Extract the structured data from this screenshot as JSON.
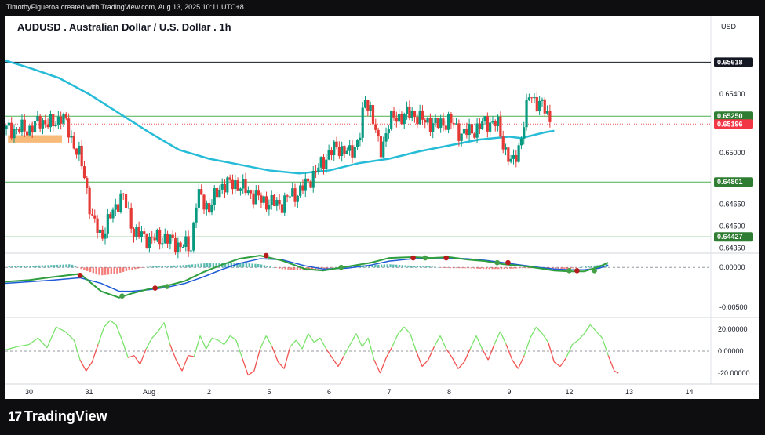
{
  "header": {
    "attribution": "TimothyFigueroa created with TradingView.com, Aug 13, 2025 10:11 UTC+8",
    "title": "AUDUSD . Australian Dollar / U.S. Dollar . 1h",
    "currency": "USD"
  },
  "brand": {
    "name": "TradingView",
    "logo": "tradingview-logo"
  },
  "colors": {
    "up": "#26a69a",
    "up_candle": "#089981",
    "down": "#e53935",
    "ma": "#26bcd7",
    "level_line": "#4caf50",
    "macd_fast": "#4caf50",
    "macd_slow": "#1e5bd6",
    "stoch": "#7ae36b"
  },
  "chart_data": [
    {
      "type": "candlestick",
      "symbol": "AUDUSD",
      "timeframe": "1h",
      "ylim": [
        0.643,
        0.6578
      ],
      "y_ticks": [
        "0.65400",
        "0.65000",
        "0.64650",
        "0.64500",
        "0.64350"
      ],
      "x_tick_labels": [
        "30",
        "31",
        "Aug",
        "2",
        "5",
        "6",
        "7",
        "8",
        "9",
        "12",
        "13",
        "14"
      ],
      "x_tick_days": [
        0.0,
        1.0,
        2.0,
        3.0,
        4.0,
        5.0,
        6.0,
        7.0,
        8.0,
        9.0,
        10.0,
        11.0
      ],
      "close_series": [
        [
          0.0,
          0.6516
        ],
        [
          0.2,
          0.6522
        ],
        [
          0.4,
          0.6519
        ],
        [
          0.55,
          0.6526
        ],
        [
          0.7,
          0.651
        ],
        [
          0.85,
          0.6497
        ],
        [
          0.95,
          0.6478
        ],
        [
          1.05,
          0.6455
        ],
        [
          1.2,
          0.6443
        ],
        [
          1.35,
          0.6456
        ],
        [
          1.55,
          0.6472
        ],
        [
          1.75,
          0.6446
        ],
        [
          2.0,
          0.6441
        ],
        [
          2.25,
          0.6442
        ],
        [
          2.5,
          0.6437
        ],
        [
          2.7,
          0.6436
        ],
        [
          2.8,
          0.6472
        ],
        [
          3.0,
          0.6462
        ],
        [
          3.2,
          0.6478
        ],
        [
          3.45,
          0.6479
        ],
        [
          3.6,
          0.6475
        ],
        [
          3.85,
          0.6468
        ],
        [
          4.0,
          0.6466
        ],
        [
          4.2,
          0.6465
        ],
        [
          4.35,
          0.6471
        ],
        [
          4.5,
          0.6473
        ],
        [
          4.7,
          0.6483
        ],
        [
          4.85,
          0.6491
        ],
        [
          5.0,
          0.65
        ],
        [
          5.15,
          0.6504
        ],
        [
          5.35,
          0.6499
        ],
        [
          5.5,
          0.651
        ],
        [
          5.6,
          0.6535
        ],
        [
          5.7,
          0.653
        ],
        [
          5.85,
          0.6499
        ],
        [
          6.0,
          0.6522
        ],
        [
          6.2,
          0.6525
        ],
        [
          6.4,
          0.6527
        ],
        [
          6.55,
          0.6522
        ],
        [
          6.8,
          0.6519
        ],
        [
          7.0,
          0.6522
        ],
        [
          7.2,
          0.6513
        ],
        [
          7.45,
          0.6516
        ],
        [
          7.6,
          0.6521
        ],
        [
          7.8,
          0.652
        ],
        [
          7.95,
          0.65
        ],
        [
          8.05,
          0.6491
        ],
        [
          8.2,
          0.651
        ],
        [
          8.35,
          0.6543
        ],
        [
          8.45,
          0.6533
        ],
        [
          8.6,
          0.6531
        ],
        [
          8.7,
          0.6521
        ]
      ],
      "candle_count": 210,
      "moving_average": [
        [
          -0.4,
          0.6563
        ],
        [
          0.0,
          0.6558
        ],
        [
          0.5,
          0.6551
        ],
        [
          1.0,
          0.654
        ],
        [
          1.5,
          0.6527
        ],
        [
          2.0,
          0.6514
        ],
        [
          2.5,
          0.6502
        ],
        [
          3.0,
          0.6496
        ],
        [
          3.5,
          0.6492
        ],
        [
          4.0,
          0.6488
        ],
        [
          4.5,
          0.6486
        ],
        [
          5.0,
          0.6488
        ],
        [
          5.5,
          0.6493
        ],
        [
          6.0,
          0.6496
        ],
        [
          6.5,
          0.6501
        ],
        [
          7.0,
          0.6505
        ],
        [
          7.5,
          0.6509
        ],
        [
          8.0,
          0.6511
        ],
        [
          8.2,
          0.651
        ],
        [
          8.6,
          0.6514
        ],
        [
          8.75,
          0.6515
        ]
      ],
      "horizontal_levels": [
        {
          "value": 0.65618,
          "label": "0.65618",
          "style": "black"
        },
        {
          "value": 0.6525,
          "label": "0.65250",
          "style": "green"
        },
        {
          "value": 0.65196,
          "label": "0.65196",
          "style": "red-dotted"
        },
        {
          "value": 0.64801,
          "label": "0.64801",
          "style": "green"
        },
        {
          "value": 0.64427,
          "label": "0.64427",
          "style": "green"
        }
      ],
      "highlight_zone": [
        -0.35,
        0.55,
        0.6507,
        0.6512
      ]
    },
    {
      "type": "macd",
      "ylim": [
        -0.006,
        0.0017
      ],
      "y_ticks": [
        "0.00000",
        "-0.00500"
      ],
      "fast_line": [
        [
          -0.4,
          -0.0018
        ],
        [
          0.0,
          -0.0016
        ],
        [
          0.4,
          -0.0012
        ],
        [
          0.85,
          -0.0008
        ],
        [
          1.2,
          -0.003
        ],
        [
          1.5,
          -0.0038
        ],
        [
          1.7,
          -0.0033
        ],
        [
          2.0,
          -0.0027
        ],
        [
          2.3,
          -0.0023
        ],
        [
          2.6,
          -0.0017
        ],
        [
          2.9,
          -0.0006
        ],
        [
          3.2,
          0.0003
        ],
        [
          3.5,
          0.0011
        ],
        [
          3.85,
          0.0015
        ],
        [
          4.2,
          0.0009
        ],
        [
          4.6,
          -0.0002
        ],
        [
          4.9,
          -0.0004
        ],
        [
          5.3,
          0.0001
        ],
        [
          5.7,
          0.0006
        ],
        [
          6.0,
          0.0012
        ],
        [
          6.4,
          0.0013
        ],
        [
          6.7,
          0.0012
        ],
        [
          7.0,
          0.0013
        ],
        [
          7.3,
          0.001
        ],
        [
          7.6,
          0.0008
        ],
        [
          7.9,
          0.0004
        ],
        [
          8.2,
          0.0002
        ],
        [
          8.5,
          -0.0001
        ],
        [
          8.75,
          -0.0004
        ],
        [
          9.0,
          -0.0005
        ],
        [
          9.25,
          -0.0005
        ],
        [
          9.5,
          0.0001
        ],
        [
          9.65,
          0.0006
        ]
      ],
      "slow_line": [
        [
          -0.4,
          -0.002
        ],
        [
          0.0,
          -0.0018
        ],
        [
          0.4,
          -0.0016
        ],
        [
          0.85,
          -0.0013
        ],
        [
          1.2,
          -0.002
        ],
        [
          1.5,
          -0.003
        ],
        [
          1.7,
          -0.003
        ],
        [
          2.0,
          -0.0028
        ],
        [
          2.3,
          -0.0025
        ],
        [
          2.6,
          -0.002
        ],
        [
          2.9,
          -0.0012
        ],
        [
          3.2,
          -0.0003
        ],
        [
          3.5,
          0.0005
        ],
        [
          3.85,
          0.0011
        ],
        [
          4.2,
          0.001
        ],
        [
          4.6,
          0.0002
        ],
        [
          4.9,
          -0.0002
        ],
        [
          5.3,
          -0.0001
        ],
        [
          5.7,
          0.0003
        ],
        [
          6.0,
          0.0008
        ],
        [
          6.4,
          0.0011
        ],
        [
          6.7,
          0.0012
        ],
        [
          7.0,
          0.0012
        ],
        [
          7.3,
          0.0011
        ],
        [
          7.6,
          0.0009
        ],
        [
          7.9,
          0.0006
        ],
        [
          8.2,
          0.0003
        ],
        [
          8.5,
          0.0
        ],
        [
          8.75,
          -0.0002
        ],
        [
          9.0,
          -0.0003
        ],
        [
          9.25,
          -0.0003
        ],
        [
          9.5,
          -0.0001
        ],
        [
          9.65,
          0.0003
        ]
      ],
      "histogram": [
        [
          -0.4,
          0.0001
        ],
        [
          0.0,
          0.0002
        ],
        [
          0.4,
          0.0003
        ],
        [
          0.7,
          0.0004
        ],
        [
          0.9,
          -0.0003
        ],
        [
          1.2,
          -0.001
        ],
        [
          1.45,
          -0.0008
        ],
        [
          1.7,
          -0.0003
        ],
        [
          2.0,
          0.0001
        ],
        [
          2.3,
          0.0002
        ],
        [
          2.6,
          0.0003
        ],
        [
          2.9,
          0.0005
        ],
        [
          3.2,
          0.0006
        ],
        [
          3.5,
          0.0006
        ],
        [
          3.85,
          0.0004
        ],
        [
          4.2,
          -0.0002
        ],
        [
          4.6,
          -0.0004
        ],
        [
          4.9,
          -0.0002
        ],
        [
          5.3,
          0.0002
        ],
        [
          5.7,
          0.0003
        ],
        [
          6.0,
          0.0004
        ],
        [
          6.4,
          0.0002
        ],
        [
          6.7,
          0.0001
        ],
        [
          7.0,
          -0.0001
        ],
        [
          7.3,
          -0.0001
        ],
        [
          7.6,
          -0.0002
        ],
        [
          7.9,
          -0.0002
        ],
        [
          8.2,
          -0.0001
        ],
        [
          8.5,
          -0.0001
        ],
        [
          8.75,
          -0.0002
        ],
        [
          9.0,
          -0.0002
        ],
        [
          9.25,
          0.0001
        ],
        [
          9.5,
          0.0003
        ],
        [
          9.65,
          0.0004
        ]
      ],
      "cross_markers": [
        {
          "x": 0.85,
          "y": -0.001,
          "kind": "bearish"
        },
        {
          "x": 1.55,
          "y": -0.0036,
          "kind": "bullish"
        },
        {
          "x": 2.1,
          "y": -0.0026,
          "kind": "bearish"
        },
        {
          "x": 2.3,
          "y": -0.0024,
          "kind": "bullish"
        },
        {
          "x": 3.95,
          "y": 0.0015,
          "kind": "bearish"
        },
        {
          "x": 5.2,
          "y": 0.0,
          "kind": "bullish"
        },
        {
          "x": 6.4,
          "y": 0.0012,
          "kind": "bearish"
        },
        {
          "x": 6.6,
          "y": 0.0012,
          "kind": "bullish"
        },
        {
          "x": 6.95,
          "y": 0.0012,
          "kind": "bearish"
        },
        {
          "x": 7.8,
          "y": 0.0006,
          "kind": "bullish"
        },
        {
          "x": 7.98,
          "y": 0.0006,
          "kind": "bearish"
        },
        {
          "x": 9.0,
          "y": -0.0004,
          "kind": "bullish"
        },
        {
          "x": 9.13,
          "y": -0.0004,
          "kind": "bearish"
        },
        {
          "x": 9.42,
          "y": -0.0004,
          "kind": "bullish"
        }
      ]
    },
    {
      "type": "oscillator",
      "ylim": [
        -30,
        30
      ],
      "y_ticks": [
        "20.00000",
        "0.00000",
        "-20.00000"
      ],
      "values": [
        [
          -0.4,
          1
        ],
        [
          -0.2,
          4
        ],
        [
          0.0,
          6
        ],
        [
          0.15,
          12
        ],
        [
          0.3,
          3
        ],
        [
          0.45,
          22
        ],
        [
          0.6,
          18
        ],
        [
          0.75,
          10
        ],
        [
          0.85,
          -8
        ],
        [
          0.95,
          -18
        ],
        [
          1.05,
          -10
        ],
        [
          1.15,
          6
        ],
        [
          1.25,
          22
        ],
        [
          1.35,
          28
        ],
        [
          1.45,
          24
        ],
        [
          1.55,
          10
        ],
        [
          1.65,
          -6
        ],
        [
          1.75,
          -4
        ],
        [
          1.85,
          -12
        ],
        [
          1.95,
          2
        ],
        [
          2.05,
          12
        ],
        [
          2.15,
          18
        ],
        [
          2.25,
          26
        ],
        [
          2.35,
          6
        ],
        [
          2.45,
          -8
        ],
        [
          2.55,
          -18
        ],
        [
          2.65,
          -4
        ],
        [
          2.75,
          -5
        ],
        [
          2.85,
          14
        ],
        [
          2.95,
          2
        ],
        [
          3.05,
          12
        ],
        [
          3.15,
          10
        ],
        [
          3.25,
          6
        ],
        [
          3.35,
          14
        ],
        [
          3.45,
          10
        ],
        [
          3.55,
          -6
        ],
        [
          3.65,
          -22
        ],
        [
          3.75,
          -18
        ],
        [
          3.85,
          2
        ],
        [
          3.95,
          14
        ],
        [
          4.05,
          4
        ],
        [
          4.15,
          -10
        ],
        [
          4.25,
          -16
        ],
        [
          4.35,
          4
        ],
        [
          4.45,
          10
        ],
        [
          4.55,
          2
        ],
        [
          4.65,
          16
        ],
        [
          4.75,
          8
        ],
        [
          4.85,
          12
        ],
        [
          4.95,
          2
        ],
        [
          5.05,
          -6
        ],
        [
          5.15,
          -14
        ],
        [
          5.25,
          -4
        ],
        [
          5.35,
          6
        ],
        [
          5.45,
          16
        ],
        [
          5.55,
          4
        ],
        [
          5.65,
          12
        ],
        [
          5.75,
          -8
        ],
        [
          5.85,
          -20
        ],
        [
          5.95,
          -6
        ],
        [
          6.05,
          4
        ],
        [
          6.15,
          16
        ],
        [
          6.25,
          22
        ],
        [
          6.35,
          16
        ],
        [
          6.45,
          0
        ],
        [
          6.55,
          -14
        ],
        [
          6.65,
          -8
        ],
        [
          6.75,
          4
        ],
        [
          6.85,
          14
        ],
        [
          6.95,
          2
        ],
        [
          7.05,
          -6
        ],
        [
          7.15,
          -16
        ],
        [
          7.25,
          -10
        ],
        [
          7.35,
          2
        ],
        [
          7.45,
          14
        ],
        [
          7.55,
          2
        ],
        [
          7.65,
          -8
        ],
        [
          7.75,
          6
        ],
        [
          7.85,
          18
        ],
        [
          7.95,
          6
        ],
        [
          8.05,
          -8
        ],
        [
          8.15,
          -16
        ],
        [
          8.25,
          -4
        ],
        [
          8.35,
          12
        ],
        [
          8.45,
          22
        ],
        [
          8.55,
          16
        ],
        [
          8.65,
          8
        ],
        [
          8.75,
          -10
        ],
        [
          8.85,
          -14
        ],
        [
          8.95,
          -6
        ],
        [
          9.05,
          6
        ],
        [
          9.15,
          10
        ],
        [
          9.25,
          16
        ],
        [
          9.35,
          24
        ],
        [
          9.45,
          18
        ],
        [
          9.55,
          12
        ],
        [
          9.65,
          -4
        ],
        [
          9.75,
          -18
        ],
        [
          9.82,
          -20
        ]
      ]
    }
  ]
}
